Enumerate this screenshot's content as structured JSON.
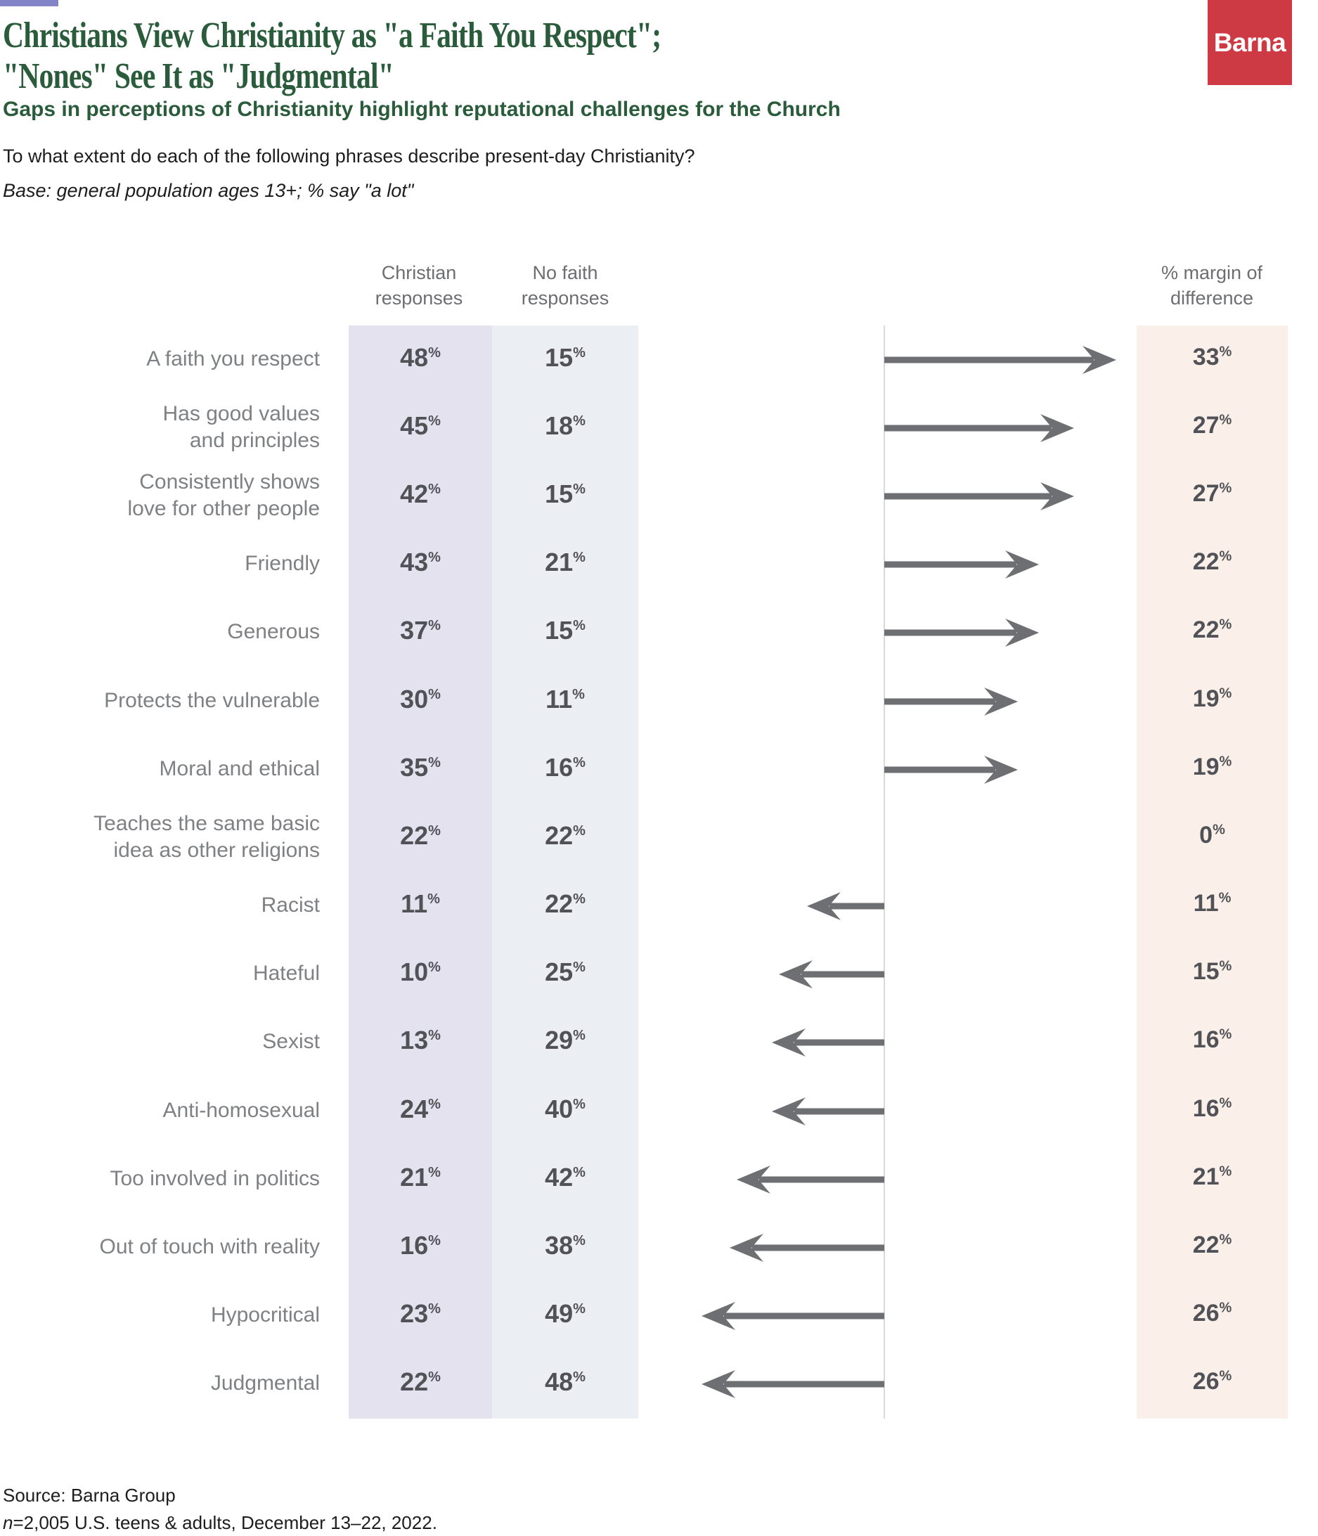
{
  "header": {
    "title_line1": "Christians View Christianity as \"a Faith You Respect\";",
    "title_line2": "\"Nones\" See It as \"Judgmental\"",
    "subtitle": "Gaps in perceptions of Christianity highlight reputational challenges for the Church",
    "question": "To what extent do each of the following phrases describe present-day Christianity?",
    "base_note": "Base: general population ages 13+; % say \"a lot\"",
    "logo_text": "Barna"
  },
  "columns": {
    "christian_header": "Christian\nresponses",
    "nofaith_header": "No faith\nresponses",
    "margin_header": "% margin of\ndifference"
  },
  "colors": {
    "accent": "#8184C6",
    "logo_red": "#CE3A44",
    "title_green": "#2A5C3C",
    "christian_band": "#E3E2EE",
    "nofaith_band": "#EBEEF2",
    "margin_band": "#FBF0E9",
    "arrow": "#6E6F72",
    "center_line": "#D8D9DA"
  },
  "rows": [
    {
      "label": "A faith you respect",
      "christian": 48,
      "nofaith": 15,
      "margin": 33
    },
    {
      "label": "Has good values\nand principles",
      "christian": 45,
      "nofaith": 18,
      "margin": 27
    },
    {
      "label": "Consistently shows\nlove for other people",
      "christian": 42,
      "nofaith": 15,
      "margin": 27
    },
    {
      "label": "Friendly",
      "christian": 43,
      "nofaith": 21,
      "margin": 22
    },
    {
      "label": "Generous",
      "christian": 37,
      "nofaith": 15,
      "margin": 22
    },
    {
      "label": "Protects the vulnerable",
      "christian": 30,
      "nofaith": 11,
      "margin": 19
    },
    {
      "label": "Moral and ethical",
      "christian": 35,
      "nofaith": 16,
      "margin": 19
    },
    {
      "label": "Teaches the same basic\nidea as other religions",
      "christian": 22,
      "nofaith": 22,
      "margin": 0
    },
    {
      "label": "Racist",
      "christian": 11,
      "nofaith": 22,
      "margin": 11
    },
    {
      "label": "Hateful",
      "christian": 10,
      "nofaith": 25,
      "margin": 15
    },
    {
      "label": "Sexist",
      "christian": 13,
      "nofaith": 29,
      "margin": 16
    },
    {
      "label": "Anti-homosexual",
      "christian": 24,
      "nofaith": 40,
      "margin": 16
    },
    {
      "label": "Too involved in politics",
      "christian": 21,
      "nofaith": 42,
      "margin": 21
    },
    {
      "label": "Out of touch with reality",
      "christian": 16,
      "nofaith": 38,
      "margin": 22
    },
    {
      "label": "Hypocritical",
      "christian": 23,
      "nofaith": 49,
      "margin": 26
    },
    {
      "label": "Judgmental",
      "christian": 22,
      "nofaith": 48,
      "margin": 26
    }
  ],
  "footer": {
    "source_line1": "Source: Barna Group",
    "source_line2": "n=2,005 U.S. teens & adults, December 13–22, 2022."
  },
  "chart_data": {
    "type": "bar",
    "variant": "diverging-arrow-comparison-table",
    "title": "Christians View Christianity as \"a Faith You Respect\"; \"Nones\" See It as \"Judgmental\"",
    "subtitle": "Gaps in perceptions of Christianity highlight reputational challenges for the Church",
    "question": "To what extent do each of the following phrases describe present-day Christianity?",
    "base": "Base: general population ages 13+; % say \"a lot\"",
    "categories": [
      "A faith you respect",
      "Has good values and principles",
      "Consistently shows love for other people",
      "Friendly",
      "Generous",
      "Protects the vulnerable",
      "Moral and ethical",
      "Teaches the same basic idea as other religions",
      "Racist",
      "Hateful",
      "Sexist",
      "Anti-homosexual",
      "Too involved in politics",
      "Out of touch with reality",
      "Hypocritical",
      "Judgmental"
    ],
    "series": [
      {
        "name": "Christian responses",
        "values": [
          48,
          45,
          42,
          43,
          37,
          30,
          35,
          22,
          11,
          10,
          13,
          24,
          21,
          16,
          23,
          22
        ]
      },
      {
        "name": "No faith responses",
        "values": [
          15,
          18,
          15,
          21,
          15,
          11,
          16,
          22,
          22,
          25,
          29,
          40,
          42,
          38,
          49,
          48
        ]
      },
      {
        "name": "% margin of difference",
        "values": [
          33,
          27,
          27,
          22,
          22,
          19,
          19,
          0,
          11,
          15,
          16,
          16,
          21,
          22,
          26,
          26
        ]
      }
    ],
    "arrow_direction_note": "Arrow points right when Christian responses are higher, left when No faith responses are higher; no arrow when margin is 0",
    "units": "%",
    "legend_position": "column headers",
    "grid": false,
    "source": "Source: Barna Group; n=2,005 U.S. teens & adults, December 13–22, 2022."
  }
}
